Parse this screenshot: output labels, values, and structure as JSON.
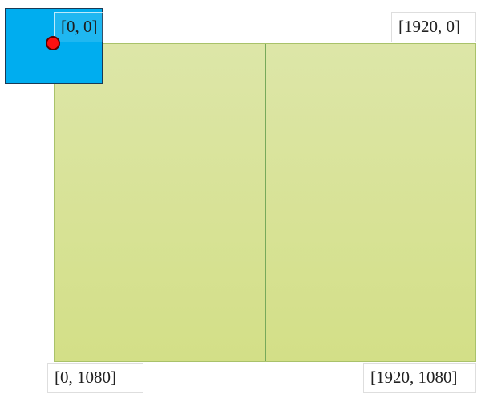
{
  "corners": {
    "top_left": "[0, 0]",
    "top_right": "[1920, 0]",
    "bottom_left": "[0, 1080]",
    "bottom_right": "[1920, 1080]"
  },
  "colors": {
    "canvas_fill": "#d8e29a",
    "grid_line": "#77a95a",
    "window_fill": "#00adef",
    "origin_marker": "#ff1010"
  }
}
